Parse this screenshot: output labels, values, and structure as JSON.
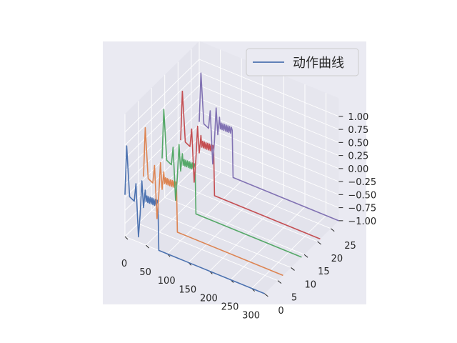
{
  "chart_data": {
    "type": "line",
    "projection": "3d",
    "legend": {
      "label": "动作曲线",
      "placement": "top-right"
    },
    "x_axis": {
      "range": [
        0,
        330
      ],
      "ticks": [
        0,
        50,
        100,
        150,
        200,
        250,
        300
      ]
    },
    "y_axis": {
      "range": [
        0,
        28
      ],
      "ticks": [
        0,
        5,
        10,
        15,
        20,
        25
      ]
    },
    "z_axis": {
      "range": [
        -1,
        1
      ],
      "ticks": [
        "1.00",
        "0.75",
        "0.50",
        "0.25",
        "0.00",
        "−0.25",
        "−0.50",
        "−0.75",
        "−1.00"
      ]
    },
    "series_y_positions": [
      0,
      7,
      14,
      21,
      28
    ],
    "colors": {
      "background": "#eaeaf2",
      "pane_left": "#e3e3ec",
      "pane_back": "#e6e6ee",
      "grid": "#ffffff",
      "series": [
        "#4c72b0",
        "#dd8452",
        "#55a868",
        "#c44e52",
        "#8172b3"
      ]
    }
  }
}
